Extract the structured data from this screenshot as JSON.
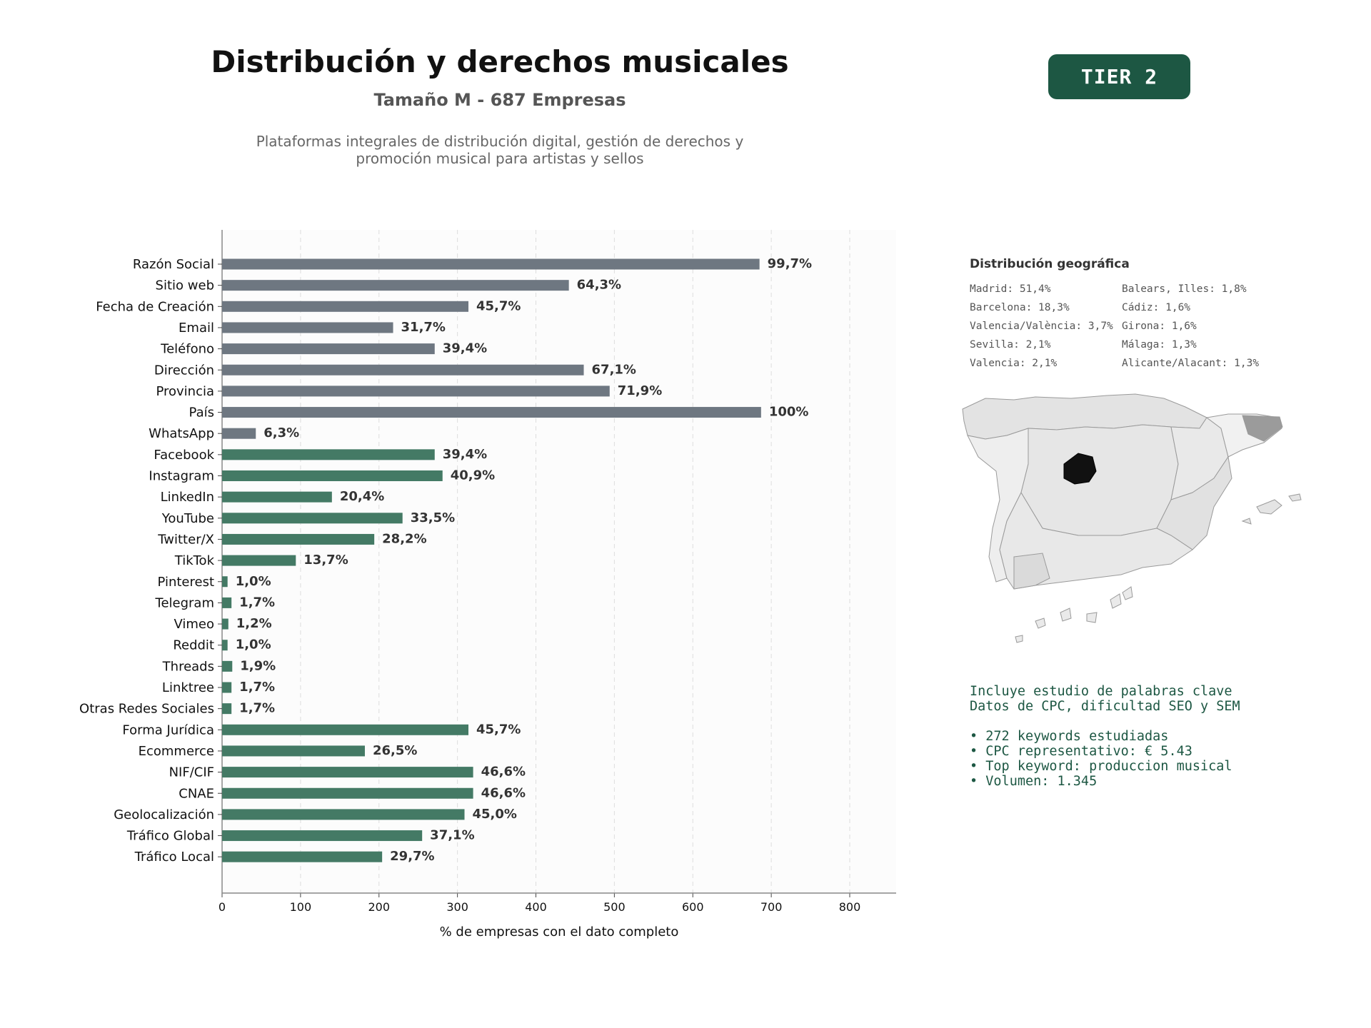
{
  "header": {
    "title": "Distribución y derechos musicales",
    "subtitle": "Tamaño M - 687 Empresas",
    "description_line1": "Plataformas integrales de distribución digital, gestión de derechos y",
    "description_line2": "promoción musical para artistas y sellos",
    "tier_badge": "TIER 2"
  },
  "colors": {
    "accent": "#1d5743",
    "bar_gray": "#6e7781",
    "bar_green": "#447a65"
  },
  "chart_data": {
    "type": "bar",
    "orientation": "horizontal",
    "xlabel": "% de empresas con el dato completo",
    "ylabel": "",
    "xlim": [
      0,
      860
    ],
    "xticks": [
      0,
      100,
      200,
      300,
      400,
      500,
      600,
      700,
      800
    ],
    "grid": "vertical dashed",
    "categories": [
      "Razón Social",
      "Sitio web",
      "Fecha de Creación",
      "Email",
      "Teléfono",
      "Dirección",
      "Provincia",
      "País",
      "WhatsApp",
      "Facebook",
      "Instagram",
      "LinkedIn",
      "YouTube",
      "Twitter/X",
      "TikTok",
      "Pinterest",
      "Telegram",
      "Vimeo",
      "Reddit",
      "Threads",
      "Linktree",
      "Otras Redes Sociales",
      "Forma Jurídica",
      "Ecommerce",
      "NIF/CIF",
      "CNAE",
      "Geolocalización",
      "Tráfico Global",
      "Tráfico Local"
    ],
    "values": [
      685,
      442,
      314,
      218,
      271,
      461,
      494,
      687,
      43,
      271,
      281,
      140,
      230,
      194,
      94,
      7,
      12,
      8,
      7,
      13,
      12,
      12,
      314,
      182,
      320,
      320,
      309,
      255,
      204
    ],
    "labels": [
      "99,7%",
      "64,3%",
      "45,7%",
      "31,7%",
      "39,4%",
      "67,1%",
      "71,9%",
      "100%",
      "6,3%",
      "39,4%",
      "40,9%",
      "20,4%",
      "33,5%",
      "28,2%",
      "13,7%",
      "1,0%",
      "1,7%",
      "1,2%",
      "1,0%",
      "1,9%",
      "1,7%",
      "1,7%",
      "45,7%",
      "26,5%",
      "46,6%",
      "46,6%",
      "45,0%",
      "37,1%",
      "29,7%"
    ],
    "bar_colors": [
      "gray",
      "gray",
      "gray",
      "gray",
      "gray",
      "gray",
      "gray",
      "gray",
      "gray",
      "green",
      "green",
      "green",
      "green",
      "green",
      "green",
      "green",
      "green",
      "green",
      "green",
      "green",
      "green",
      "green",
      "green",
      "green",
      "green",
      "green",
      "green",
      "green",
      "green"
    ]
  },
  "geo": {
    "title": "Distribución geográfica",
    "items": [
      "Madrid: 51,4%",
      "Balears, Illes: 1,8%",
      "Barcelona: 18,3%",
      "Cádiz: 1,6%",
      "Valencia/València: 3,7%",
      "Girona: 1,6%",
      "Sevilla: 2,1%",
      "Málaga: 1,3%",
      "Valencia: 2,1%",
      "Alicante/Alacant: 1,3%"
    ]
  },
  "keywords": {
    "line1": "Incluye estudio de palabras clave",
    "line2": "Datos de CPC, dificultad SEO y SEM",
    "bullet1": "• 272 keywords estudiadas",
    "bullet2": "• CPC representativo: € 5.43",
    "bullet3": "• Top keyword: produccion musical",
    "bullet4": "• Volumen: 1.345"
  }
}
